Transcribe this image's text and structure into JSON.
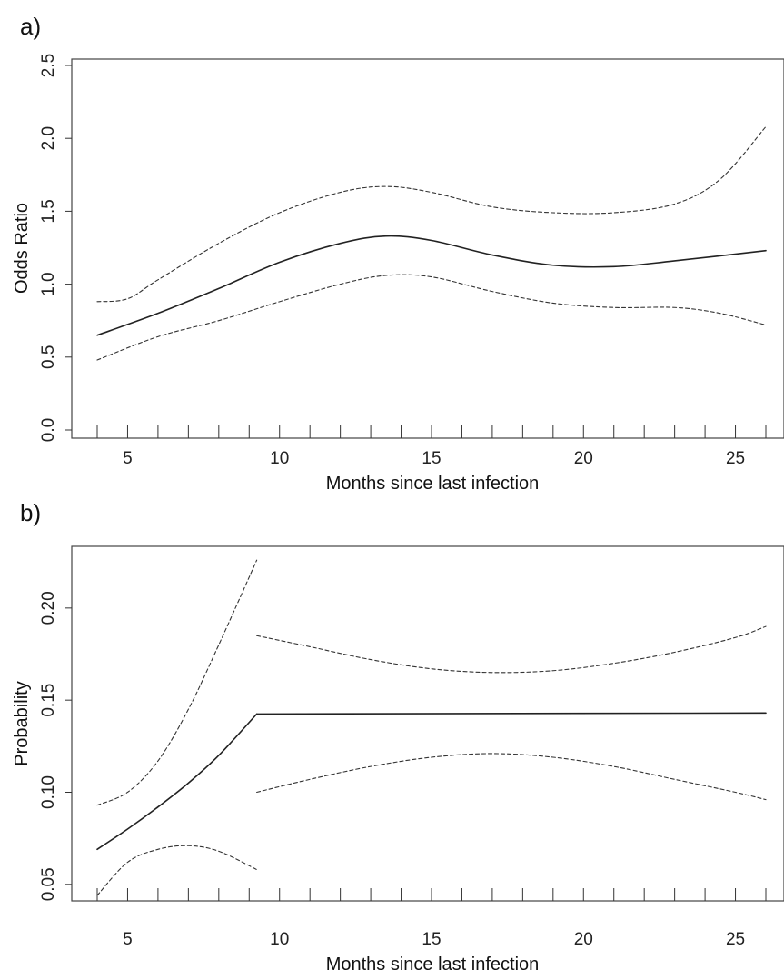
{
  "panels": [
    {
      "label": "a)",
      "chart_data": {
        "type": "line",
        "title": "",
        "xlabel": "Months since last infection",
        "ylabel": "Odds Ratio",
        "xlim": [
          4,
          26
        ],
        "ylim": [
          0.0,
          2.5
        ],
        "x_ticks": [
          5,
          10,
          15,
          20,
          25
        ],
        "y_ticks": [
          0.0,
          0.5,
          1.0,
          1.5,
          2.0,
          2.5
        ],
        "y_tick_labels": [
          "0.0",
          "0.5",
          "1.0",
          "1.5",
          "2.0",
          "2.5"
        ],
        "rug_x": [
          4,
          5,
          6,
          7,
          8,
          9,
          10,
          11,
          12,
          13,
          14,
          15,
          16,
          17,
          18,
          19,
          20,
          21,
          22,
          23,
          24,
          25,
          26
        ],
        "grid": false,
        "series": [
          {
            "style": "solid",
            "x": [
              4,
              6,
              8,
              10,
              12,
              13.5,
              15,
              17,
              19,
              21,
              23,
              26
            ],
            "y": [
              0.65,
              0.8,
              0.97,
              1.15,
              1.28,
              1.33,
              1.3,
              1.2,
              1.13,
              1.12,
              1.16,
              1.23
            ]
          },
          {
            "style": "dashed",
            "x": [
              4,
              5,
              6,
              8,
              10,
              12,
              13.5,
              15,
              17,
              19,
              21,
              23,
              24.5,
              26
            ],
            "y": [
              0.88,
              0.9,
              1.03,
              1.28,
              1.49,
              1.63,
              1.67,
              1.63,
              1.53,
              1.49,
              1.49,
              1.55,
              1.72,
              2.08
            ]
          },
          {
            "style": "dashed",
            "x": [
              4,
              6,
              8,
              10,
              12,
              13.5,
              15,
              17,
              19,
              21,
              23,
              24.5,
              26
            ],
            "y": [
              0.48,
              0.64,
              0.75,
              0.88,
              1.0,
              1.06,
              1.05,
              0.95,
              0.87,
              0.84,
              0.84,
              0.8,
              0.72
            ]
          }
        ]
      }
    },
    {
      "label": "b)",
      "chart_data": {
        "type": "line",
        "title": "",
        "xlabel": "Months since last infection",
        "ylabel": "Probability",
        "xlim": [
          4,
          26
        ],
        "ylim": [
          0.043,
          0.232
        ],
        "x_ticks": [
          5,
          10,
          15,
          20,
          25
        ],
        "y_ticks": [
          0.05,
          0.1,
          0.15,
          0.2
        ],
        "y_tick_labels": [
          "0.05",
          "0.10",
          "0.15",
          "0.20"
        ],
        "rug_x": [
          4,
          5,
          6,
          7,
          8,
          9,
          10,
          11,
          12,
          13,
          14,
          15,
          16,
          17,
          18,
          19,
          20,
          21,
          22,
          23,
          24,
          25,
          26
        ],
        "grid": false,
        "series": [
          {
            "style": "solid",
            "x": [
              4,
              5,
              6,
              7,
              8,
              9.25
            ],
            "y": [
              0.069,
              0.08,
              0.092,
              0.105,
              0.12,
              0.1425
            ]
          },
          {
            "style": "solid",
            "x": [
              9.25,
              26
            ],
            "y": [
              0.1425,
              0.143
            ]
          },
          {
            "style": "dashed",
            "x": [
              4,
              5,
              6,
              7,
              8,
              9.25
            ],
            "y": [
              0.093,
              0.1,
              0.117,
              0.145,
              0.18,
              0.226
            ]
          },
          {
            "style": "dashed",
            "x": [
              4,
              5,
              6,
              7,
              8,
              9.25
            ],
            "y": [
              0.044,
              0.062,
              0.069,
              0.071,
              0.068,
              0.058
            ]
          },
          {
            "style": "dashed",
            "x": [
              9.25,
              11,
              13,
              15,
              17,
              19,
              21,
              23,
              25,
              26
            ],
            "y": [
              0.185,
              0.179,
              0.172,
              0.167,
              0.165,
              0.166,
              0.17,
              0.176,
              0.184,
              0.19
            ]
          },
          {
            "style": "dashed",
            "x": [
              9.25,
              11,
              13,
              15,
              17,
              19,
              21,
              23,
              25,
              26
            ],
            "y": [
              0.1,
              0.107,
              0.114,
              0.119,
              0.121,
              0.119,
              0.114,
              0.107,
              0.1,
              0.096
            ]
          }
        ]
      }
    }
  ]
}
